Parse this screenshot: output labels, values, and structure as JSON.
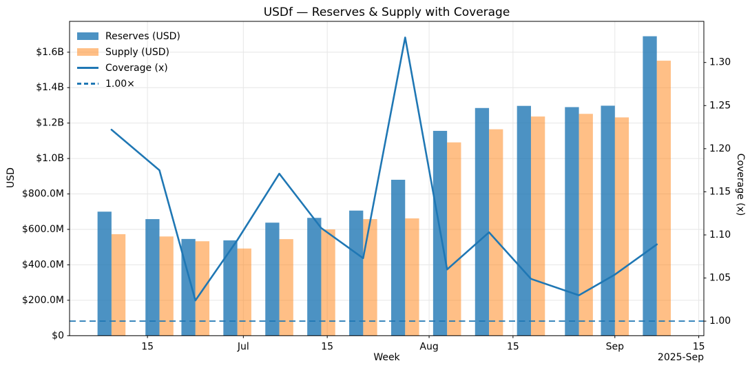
{
  "chart_data": {
    "type": "combo",
    "title": "USDf — Reserves & Supply with Coverage",
    "xlabel": "Week",
    "ylabel_left": "USD",
    "ylabel_right": "Coverage (x)",
    "x_offset_text": "2025-Sep",
    "weeks": [
      "2025-06-09",
      "2025-06-17",
      "2025-06-23",
      "2025-06-30",
      "2025-07-07",
      "2025-07-14",
      "2025-07-21",
      "2025-07-28",
      "2025-08-04",
      "2025-08-11",
      "2025-08-18",
      "2025-08-26",
      "2025-09-01",
      "2025-09-08"
    ],
    "week_day_offsets": [
      7,
      15,
      21,
      28,
      35,
      42,
      49,
      56,
      63,
      70,
      77,
      85,
      91,
      98
    ],
    "series": {
      "reserves": {
        "label": "Reserves (USD)",
        "type": "bar",
        "axis": "left",
        "unit": "million USD",
        "values": [
          700,
          658,
          546,
          538,
          638,
          665,
          706,
          880,
          1156,
          1285,
          1297,
          1290,
          1298,
          1690
        ]
      },
      "supply": {
        "label": "Supply (USD)",
        "type": "bar",
        "axis": "left",
        "unit": "million USD",
        "values": [
          573,
          560,
          533,
          492,
          545,
          600,
          658,
          662,
          1091,
          1165,
          1237,
          1252,
          1232,
          1552
        ]
      },
      "coverage": {
        "label": "Coverage (x)",
        "type": "line",
        "axis": "right",
        "values": [
          1.222,
          1.175,
          1.024,
          1.094,
          1.171,
          1.108,
          1.073,
          1.329,
          1.06,
          1.103,
          1.049,
          1.03,
          1.054,
          1.089
        ]
      },
      "baseline": {
        "label": "1.00×",
        "type": "hline",
        "axis": "right",
        "value": 1.0
      }
    },
    "axes": {
      "x": {
        "origin_date": "2025-06-02",
        "domain_days": [
          0,
          105.85
        ],
        "ticks": [
          {
            "day": 13,
            "label": "15"
          },
          {
            "day": 29,
            "label": "Jul"
          },
          {
            "day": 43,
            "label": "15"
          },
          {
            "day": 60,
            "label": "Aug"
          },
          {
            "day": 74,
            "label": "15"
          },
          {
            "day": 91,
            "label": "Sep"
          },
          {
            "day": 105,
            "label": "15"
          }
        ]
      },
      "left": {
        "lim": [
          0,
          1774
        ],
        "ticks": [
          {
            "value": 0,
            "label": "$0"
          },
          {
            "value": 200,
            "label": "$200.0M"
          },
          {
            "value": 400,
            "label": "$400.0M"
          },
          {
            "value": 600,
            "label": "$600.0M"
          },
          {
            "value": 800,
            "label": "$800.0M"
          },
          {
            "value": 1000,
            "label": "$1.0B"
          },
          {
            "value": 1200,
            "label": "$1.2B"
          },
          {
            "value": 1400,
            "label": "$1.4B"
          },
          {
            "value": 1600,
            "label": "$1.6B"
          }
        ]
      },
      "right": {
        "lim": [
          0.9831,
          1.3477
        ],
        "ticks": [
          {
            "value": 1.0,
            "label": "1.00"
          },
          {
            "value": 1.05,
            "label": "1.05"
          },
          {
            "value": 1.1,
            "label": "1.10"
          },
          {
            "value": 1.15,
            "label": "1.15"
          },
          {
            "value": 1.2,
            "label": "1.20"
          },
          {
            "value": 1.25,
            "label": "1.25"
          },
          {
            "value": 1.3,
            "label": "1.30"
          }
        ]
      }
    },
    "grid": true,
    "legend_position": "upper-left",
    "colors": {
      "reserves_bar": "#1f77b4",
      "reserves_bar_opacity": 0.8,
      "supply_bar": "#ff7f0e",
      "supply_bar_opacity": 0.5,
      "coverage_line": "#1f77b4",
      "baseline_line": "#1f77b4",
      "grid": "#e6e6e6",
      "axis": "#000000"
    }
  }
}
